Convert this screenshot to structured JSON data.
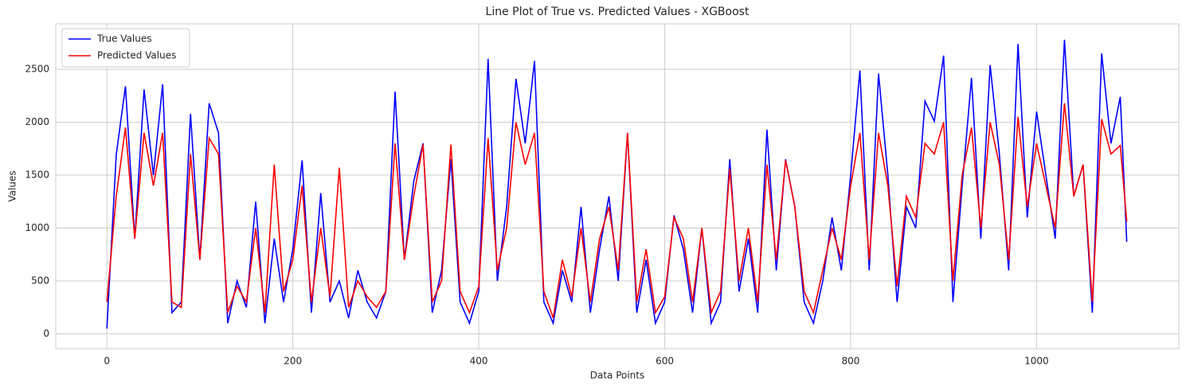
{
  "chart_data": {
    "type": "line",
    "title": "Line Plot of True vs. Predicted Values - XGBoost",
    "xlabel": "Data Points",
    "ylabel": "Values",
    "x": [
      0,
      10,
      20,
      30,
      40,
      50,
      60,
      70,
      80,
      90,
      100,
      110,
      120,
      130,
      140,
      150,
      160,
      170,
      180,
      190,
      200,
      210,
      220,
      230,
      240,
      250,
      260,
      270,
      280,
      290,
      300,
      310,
      320,
      330,
      340,
      350,
      360,
      370,
      380,
      390,
      400,
      410,
      420,
      430,
      440,
      450,
      460,
      470,
      480,
      490,
      500,
      510,
      520,
      530,
      540,
      550,
      560,
      570,
      580,
      590,
      600,
      610,
      620,
      630,
      640,
      650,
      660,
      670,
      680,
      690,
      700,
      710,
      720,
      730,
      740,
      750,
      760,
      770,
      780,
      790,
      800,
      810,
      820,
      830,
      840,
      850,
      860,
      870,
      880,
      890,
      900,
      910,
      920,
      930,
      940,
      950,
      960,
      970,
      980,
      990,
      1000,
      1010,
      1020,
      1030,
      1040,
      1050,
      1060,
      1070,
      1080,
      1090,
      1097
    ],
    "series": [
      {
        "name": "True Values",
        "color": "#0000ff",
        "values": [
          50,
          1690,
          2340,
          900,
          2310,
          1500,
          2360,
          200,
          300,
          2080,
          700,
          2180,
          1900,
          100,
          500,
          250,
          1250,
          100,
          900,
          300,
          800,
          1640,
          200,
          1330,
          300,
          500,
          150,
          600,
          300,
          150,
          400,
          2290,
          700,
          1440,
          1800,
          200,
          600,
          1650,
          300,
          100,
          400,
          2600,
          500,
          1200,
          2410,
          1800,
          2580,
          300,
          100,
          600,
          300,
          1200,
          200,
          800,
          1300,
          500,
          1900,
          200,
          700,
          100,
          300,
          1120,
          800,
          200,
          1000,
          100,
          300,
          1650,
          400,
          900,
          200,
          1930,
          600,
          1650,
          1200,
          300,
          100,
          500,
          1100,
          600,
          1500,
          2490,
          600,
          2460,
          1500,
          300,
          1200,
          1000,
          2200,
          2010,
          2630,
          300,
          1400,
          2420,
          900,
          2540,
          1700,
          600,
          2740,
          1100,
          2100,
          1500,
          900,
          2780,
          1300,
          1600,
          200,
          2650,
          1800,
          2240,
          870
        ]
      },
      {
        "name": "Predicted Values",
        "color": "#ff0000",
        "values": [
          300,
          1300,
          1950,
          900,
          1900,
          1400,
          1900,
          300,
          250,
          1700,
          700,
          1850,
          1700,
          200,
          450,
          300,
          1000,
          200,
          1600,
          400,
          700,
          1400,
          300,
          1000,
          350,
          1570,
          250,
          500,
          350,
          250,
          400,
          1800,
          700,
          1300,
          1790,
          300,
          500,
          1790,
          400,
          200,
          450,
          1850,
          600,
          1000,
          2000,
          1600,
          1900,
          400,
          150,
          700,
          350,
          1000,
          300,
          900,
          1200,
          600,
          1900,
          300,
          800,
          200,
          350,
          1100,
          900,
          300,
          1000,
          200,
          400,
          1560,
          500,
          1000,
          300,
          1600,
          700,
          1640,
          1200,
          400,
          200,
          600,
          1000,
          700,
          1400,
          1900,
          700,
          1900,
          1400,
          450,
          1300,
          1100,
          1800,
          1700,
          2000,
          500,
          1500,
          1950,
          1000,
          2000,
          1600,
          700,
          2050,
          1200,
          1800,
          1400,
          1000,
          2180,
          1300,
          1600,
          300,
          2030,
          1700,
          1780,
          1060
        ]
      }
    ],
    "xlim": [
      -55,
      1153
    ],
    "ylim": [
      -140,
      2930
    ],
    "xticks": [
      0,
      200,
      400,
      600,
      800,
      1000
    ],
    "yticks": [
      0,
      500,
      1000,
      1500,
      2000,
      2500
    ],
    "grid": true,
    "legend": "upper left"
  }
}
